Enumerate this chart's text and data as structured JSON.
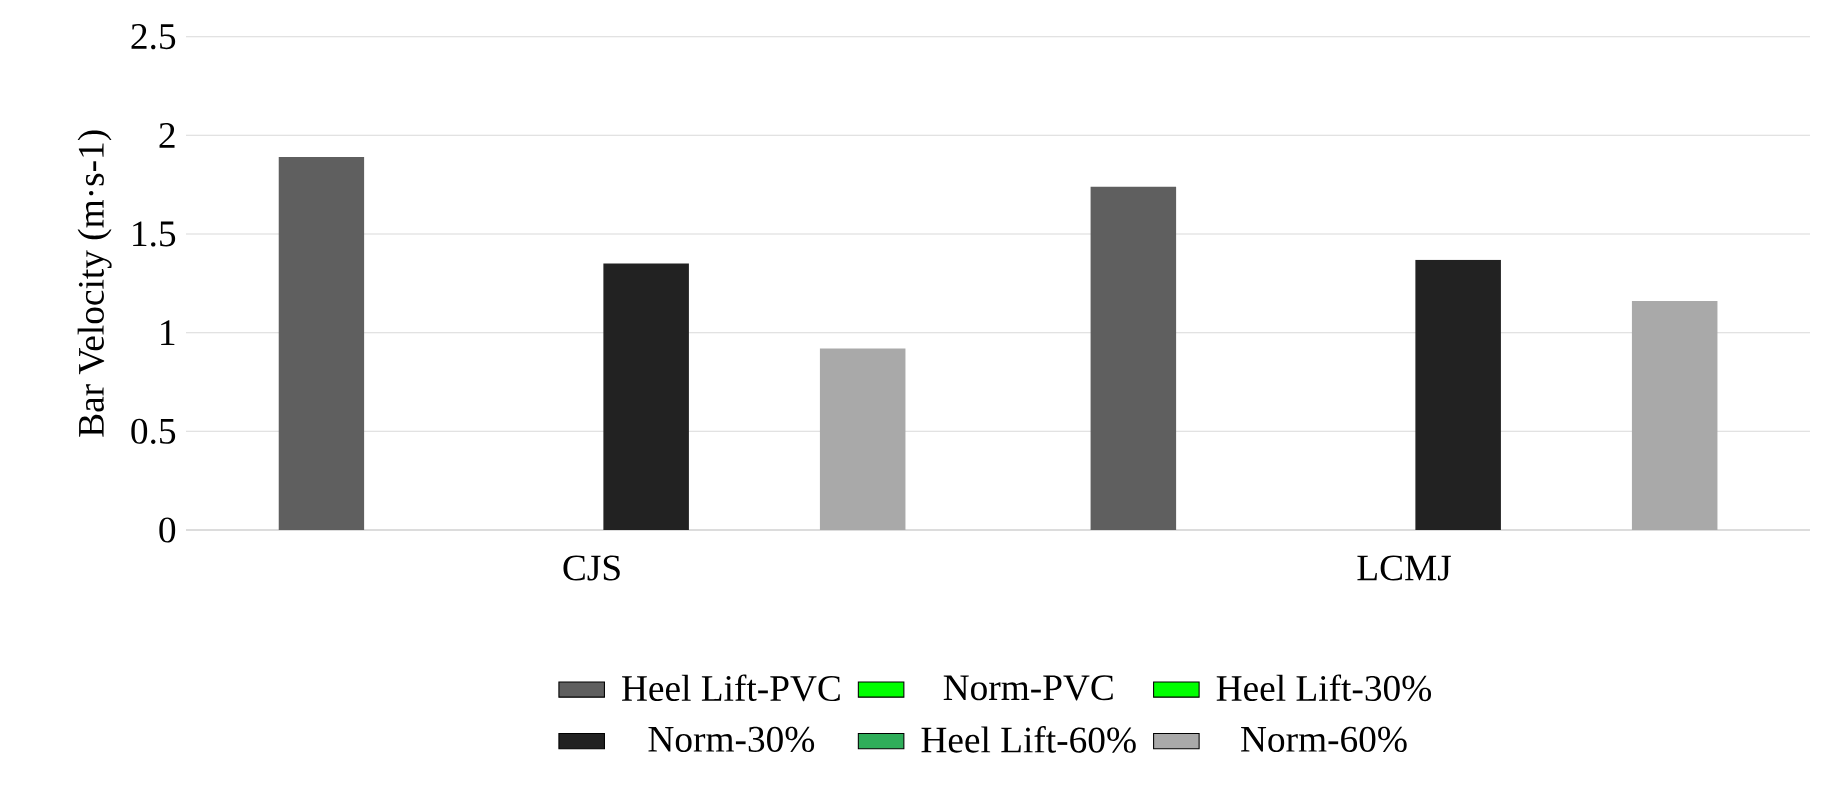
{
  "chart_data": {
    "type": "bar",
    "ylabel": "Bar Velocity (m·s-1)",
    "categories": [
      "CJS",
      "LCMJ"
    ],
    "series": [
      {
        "name": "Heel Lift-PVC",
        "color": "#5f5f5f",
        "values": [
          1.89,
          1.74
        ]
      },
      {
        "name": "Norm-PVC",
        "color": "#00ff00",
        "values": [
          null,
          null
        ]
      },
      {
        "name": "Heel Lift-30%",
        "color": "#00ff00",
        "values": [
          null,
          null
        ]
      },
      {
        "name": "Norm-30%",
        "color": "#222222",
        "values": [
          1.35,
          1.37
        ]
      },
      {
        "name": "Heel Lift-60%",
        "color": "#2fae5a",
        "values": [
          null,
          null
        ]
      },
      {
        "name": "Norm-60%",
        "color": "#a9a9a9",
        "values": [
          0.92,
          1.16
        ]
      }
    ],
    "ylim": [
      0,
      2.5
    ],
    "yticks": [
      0,
      0.5,
      1,
      1.5,
      2,
      2.5
    ],
    "grid": "y",
    "legend": "bottom"
  }
}
